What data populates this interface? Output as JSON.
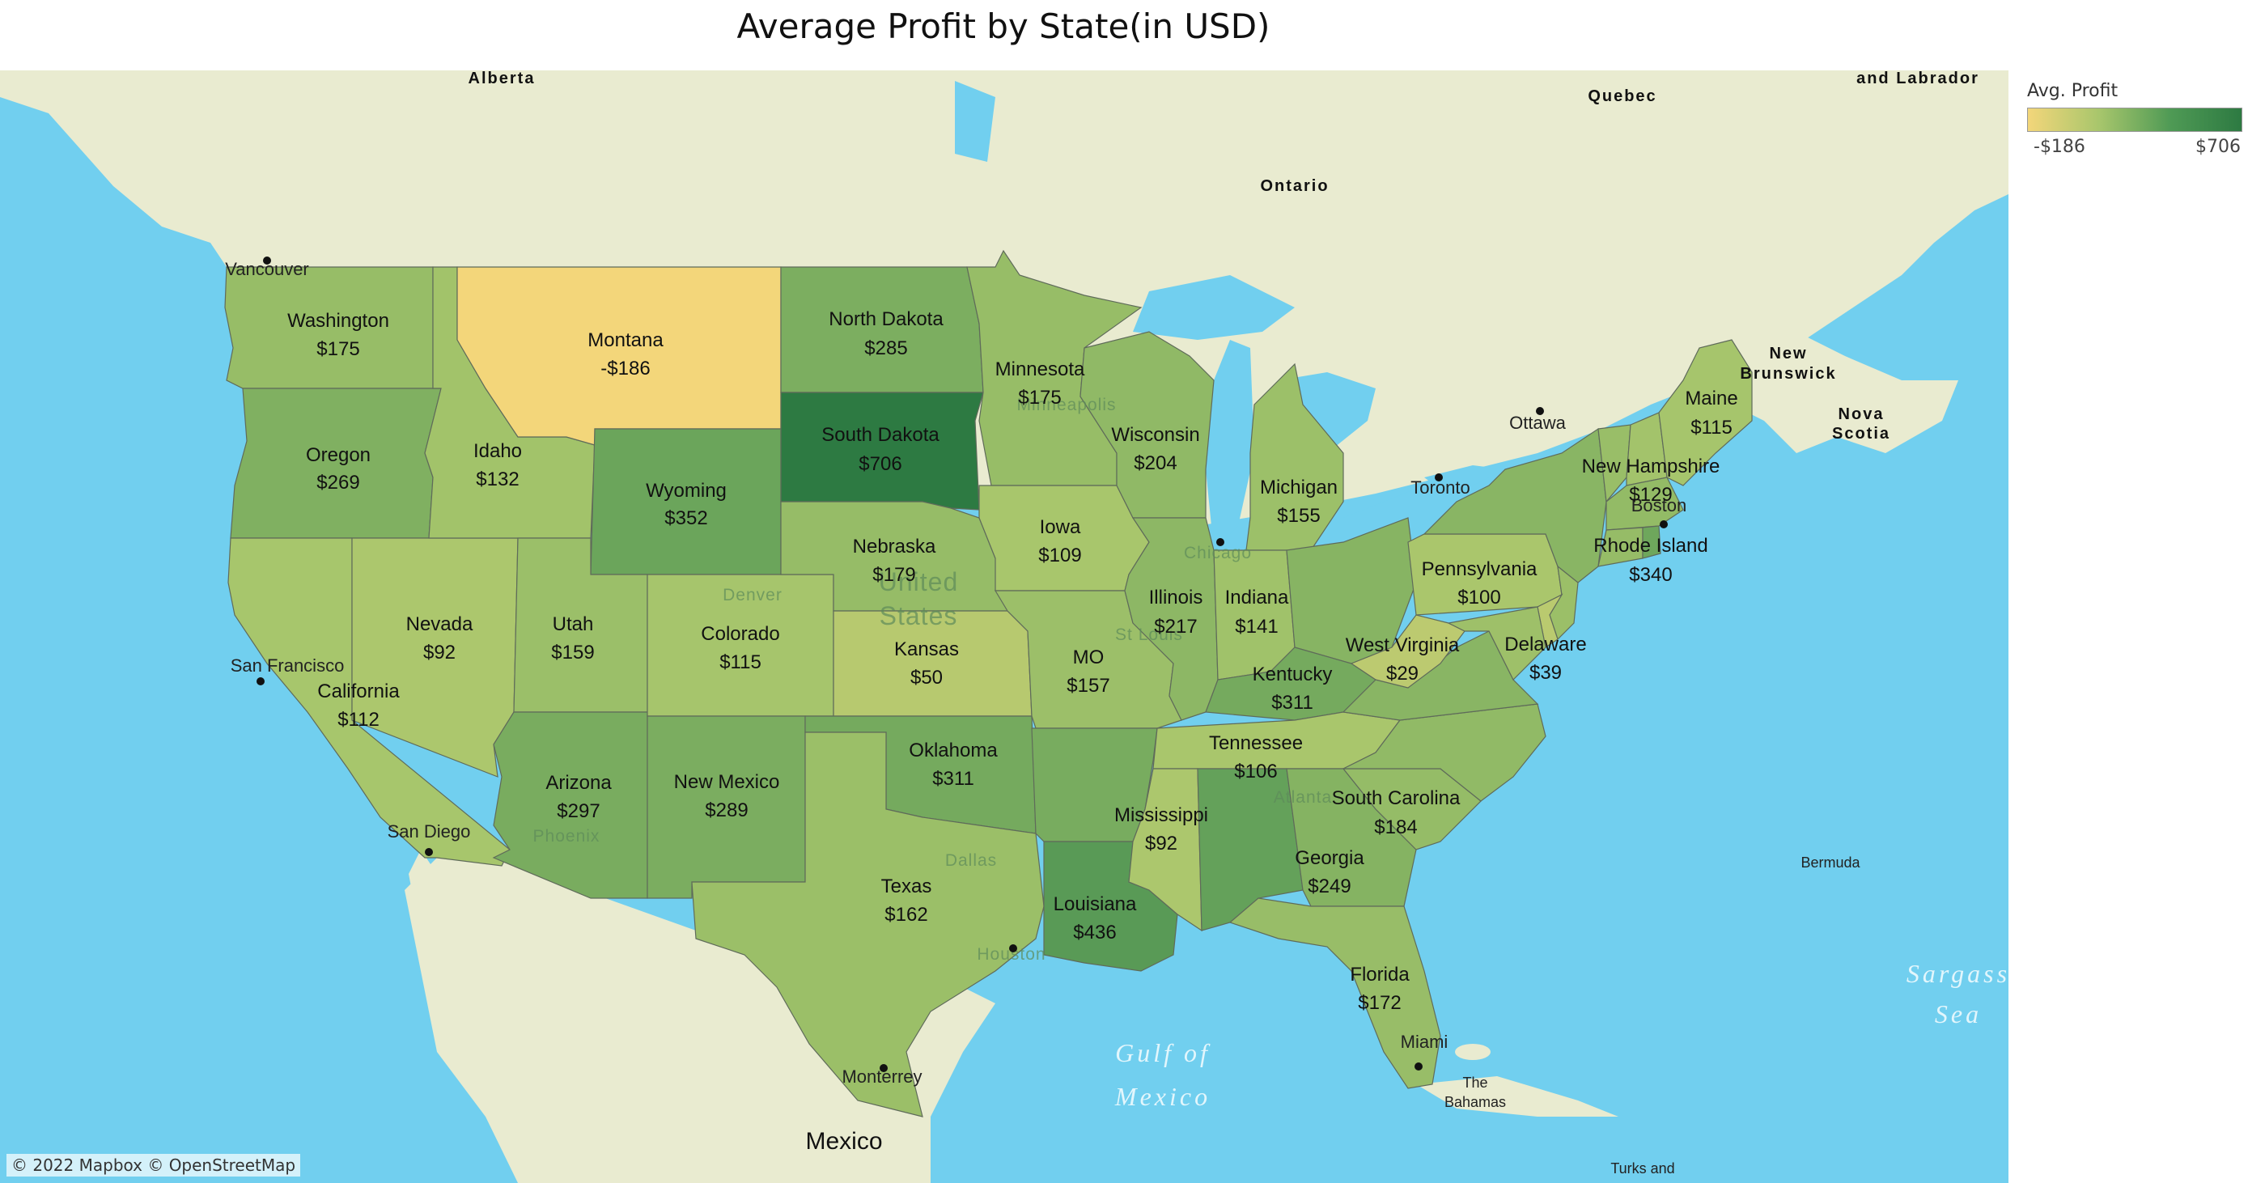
{
  "title": "Average Profit by State(in USD)",
  "legend": {
    "title": "Avg. Profit",
    "min_label": "-$186",
    "max_label": "$706",
    "min_value": -186,
    "max_value": 706
  },
  "attribution": "© 2022 Mapbox © OpenStreetMap",
  "colors": {
    "land_color": "#e9ebd0",
    "ocean_color": "#71cfef",
    "scale_low": "#f3d67a",
    "scale_high": "#2d7a42"
  },
  "states": [
    {
      "name": "Washington",
      "label": "$175",
      "value": 175
    },
    {
      "name": "Oregon",
      "label": "$269",
      "value": 269
    },
    {
      "name": "California",
      "label": "$112",
      "value": 112
    },
    {
      "name": "Nevada",
      "label": "$92",
      "value": 92
    },
    {
      "name": "Idaho",
      "label": "$132",
      "value": 132
    },
    {
      "name": "Montana",
      "label": "-$186",
      "value": -186
    },
    {
      "name": "Wyoming",
      "label": "$352",
      "value": 352
    },
    {
      "name": "Utah",
      "label": "$159",
      "value": 159
    },
    {
      "name": "Arizona",
      "label": "$297",
      "value": 297
    },
    {
      "name": "Colorado",
      "label": "$115",
      "value": 115
    },
    {
      "name": "New Mexico",
      "label": "$289",
      "value": 289
    },
    {
      "name": "North Dakota",
      "label": "$285",
      "value": 285
    },
    {
      "name": "South Dakota",
      "label": "$706",
      "value": 706
    },
    {
      "name": "Nebraska",
      "label": "$179",
      "value": 179
    },
    {
      "name": "Kansas",
      "label": "$50",
      "value": 50
    },
    {
      "name": "Oklahoma",
      "label": "$311",
      "value": 311
    },
    {
      "name": "Texas",
      "label": "$162",
      "value": 162
    },
    {
      "name": "Minnesota",
      "label": "$175",
      "value": 175
    },
    {
      "name": "Iowa",
      "label": "$109",
      "value": 109
    },
    {
      "name": "MO",
      "label": "$157",
      "value": 157
    },
    {
      "name": "Louisiana",
      "label": "$436",
      "value": 436
    },
    {
      "name": "Wisconsin",
      "label": "$204",
      "value": 204
    },
    {
      "name": "Illinois",
      "label": "$217",
      "value": 217
    },
    {
      "name": "Michigan",
      "label": "$155",
      "value": 155
    },
    {
      "name": "Indiana",
      "label": "$141",
      "value": 141
    },
    {
      "name": "Kentucky",
      "label": "$311",
      "value": 311
    },
    {
      "name": "Tennessee",
      "label": "$106",
      "value": 106
    },
    {
      "name": "Mississippi",
      "label": "$92",
      "value": 92
    },
    {
      "name": "Georgia",
      "label": "$249",
      "value": 249
    },
    {
      "name": "South Carolina",
      "label": "$184",
      "value": 184
    },
    {
      "name": "Florida",
      "label": "$172",
      "value": 172
    },
    {
      "name": "West Virginia",
      "label": "$29",
      "value": 29
    },
    {
      "name": "Pennsylvania",
      "label": "$100",
      "value": 100
    },
    {
      "name": "Delaware",
      "label": "$39",
      "value": 39
    },
    {
      "name": "New Hampshire",
      "label": "$129",
      "value": 129
    },
    {
      "name": "Rhode Island",
      "label": "$340",
      "value": 340
    },
    {
      "name": "Maine",
      "label": "$115",
      "value": 115
    }
  ],
  "unlabeled_states": [
    {
      "name": "Arkansas",
      "value": 300
    },
    {
      "name": "Alabama",
      "value": 380
    },
    {
      "name": "Ohio",
      "value": 240
    },
    {
      "name": "North Carolina",
      "value": 200
    },
    {
      "name": "Virginia",
      "value": 230
    },
    {
      "name": "New York",
      "value": 230
    },
    {
      "name": "Vermont",
      "value": 170
    },
    {
      "name": "Massachusetts",
      "value": 190
    },
    {
      "name": "Connecticut",
      "value": 180
    },
    {
      "name": "New Jersey",
      "value": 160
    },
    {
      "name": "Maryland",
      "value": 150
    }
  ],
  "places": {
    "alberta": "Alberta",
    "quebec": "Quebec",
    "labrador": "and Labrador",
    "ontario": "Ontario",
    "new_brunswick_1": "New",
    "new_brunswick_2": "Brunswick",
    "nova_scotia_1": "Nova",
    "nova_scotia_2": "Scotia",
    "vancouver": "Vancouver",
    "ottawa": "Ottawa",
    "toronto": "Toronto",
    "boston": "Boston",
    "san_francisco": "San Francisco",
    "san_diego": "San Diego",
    "chicago": "Chicago",
    "houston": "Houston",
    "miami": "Miami",
    "monterrey": "Monterrey",
    "mexico": "Mexico",
    "bermuda": "Bermuda",
    "bahamas_1": "The",
    "bahamas_2": "Bahamas",
    "turks": "Turks and",
    "gulf_1": "Gulf of",
    "gulf_2": "Mexico",
    "sargasso_1": "Sargass",
    "sargasso_2": "Sea",
    "denver": "Denver",
    "dallas": "Dallas",
    "phoenix": "Phoenix",
    "minneapolis": "Minneapolis",
    "st_louis": "St Louis",
    "atlanta": "Atlanta",
    "united_1": "United",
    "united_2": "States"
  }
}
